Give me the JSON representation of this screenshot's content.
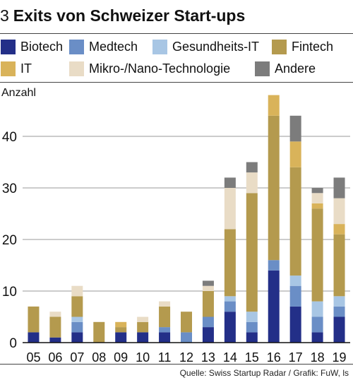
{
  "header": {
    "number": "3",
    "title": "Exits von Schweizer Start-ups"
  },
  "source": "Quelle: Swiss Startup Radar / Grafik: FuW, ls",
  "colors": {
    "Biotech": "#232f88",
    "Medtech": "#6a8ec6",
    "Gesundheits-IT": "#a8c6e4",
    "Fintech": "#b49a4e",
    "IT": "#d9b35a",
    "Mikro-/Nano-Technologie": "#e9dcc6",
    "Andere": "#7c7c7c"
  },
  "chart_data": {
    "type": "bar",
    "stacked": true,
    "ylabel": "Anzahl",
    "ylim": [
      0,
      50
    ],
    "yticks": [
      0,
      10,
      20,
      30,
      40
    ],
    "grid": true,
    "legend_position": "top",
    "categories": [
      "05",
      "06",
      "07",
      "08",
      "09",
      "10",
      "11",
      "12",
      "13",
      "14",
      "15",
      "16",
      "17",
      "18",
      "19"
    ],
    "series": [
      {
        "name": "Biotech",
        "values": [
          2,
          1,
          2,
          0,
          2,
          2,
          2,
          0,
          3,
          6,
          2,
          14,
          7,
          2,
          5
        ]
      },
      {
        "name": "Medtech",
        "values": [
          0,
          0,
          2,
          0,
          0,
          0,
          1,
          2,
          2,
          2,
          2,
          2,
          4,
          3,
          2
        ]
      },
      {
        "name": "Gesundheits-IT",
        "values": [
          0,
          0,
          1,
          0,
          0,
          0,
          0,
          0,
          0,
          1,
          2,
          0,
          2,
          3,
          2
        ]
      },
      {
        "name": "Fintech",
        "values": [
          5,
          4,
          4,
          4,
          1,
          2,
          4,
          4,
          5,
          13,
          23,
          28,
          21,
          18,
          12
        ]
      },
      {
        "name": "IT",
        "values": [
          0,
          0,
          0,
          0,
          1,
          0,
          0,
          0,
          0,
          0,
          0,
          4,
          5,
          1,
          2
        ]
      },
      {
        "name": "Mikro-/Nano-Technologie",
        "values": [
          0,
          1,
          2,
          0,
          0,
          1,
          1,
          0,
          1,
          8,
          4,
          0,
          0,
          2,
          5
        ]
      },
      {
        "name": "Andere",
        "values": [
          0,
          0,
          0,
          0,
          0,
          0,
          0,
          0,
          1,
          2,
          2,
          0,
          5,
          1,
          4
        ]
      }
    ]
  }
}
